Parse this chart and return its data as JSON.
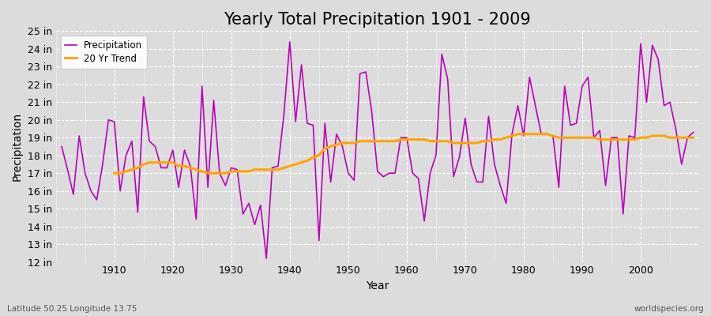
{
  "title": "Yearly Total Precipitation 1901 - 2009",
  "xlabel": "Year",
  "ylabel": "Precipitation",
  "bottom_left_label": "Latitude 50.25 Longitude 13.75",
  "bottom_right_label": "worldspecies.org",
  "ylim": [
    12,
    25
  ],
  "yticks": [
    12,
    13,
    14,
    15,
    16,
    17,
    18,
    19,
    20,
    21,
    22,
    23,
    24,
    25
  ],
  "ytick_labels": [
    "12 in",
    "13 in",
    "14 in",
    "15 in",
    "16 in",
    "17 in",
    "18 in",
    "19 in",
    "20 in",
    "21 in",
    "22 in",
    "23 in",
    "24 in",
    "25 in"
  ],
  "background_color": "#dcdcdc",
  "plot_bg_color": "#dcdcdc",
  "precipitation_color": "#bb00bb",
  "trend_color": "#ffa500",
  "legend_labels": [
    "Precipitation",
    "20 Yr Trend"
  ],
  "years": [
    1901,
    1902,
    1903,
    1904,
    1905,
    1906,
    1907,
    1908,
    1909,
    1910,
    1911,
    1912,
    1913,
    1914,
    1915,
    1916,
    1917,
    1918,
    1919,
    1920,
    1921,
    1922,
    1923,
    1924,
    1925,
    1926,
    1927,
    1928,
    1929,
    1930,
    1931,
    1932,
    1933,
    1934,
    1935,
    1936,
    1937,
    1938,
    1939,
    1940,
    1941,
    1942,
    1943,
    1944,
    1945,
    1946,
    1947,
    1948,
    1949,
    1950,
    1951,
    1952,
    1953,
    1954,
    1955,
    1956,
    1957,
    1958,
    1959,
    1960,
    1961,
    1962,
    1963,
    1964,
    1965,
    1966,
    1967,
    1968,
    1969,
    1970,
    1971,
    1972,
    1973,
    1974,
    1975,
    1976,
    1977,
    1978,
    1979,
    1980,
    1981,
    1982,
    1983,
    1984,
    1985,
    1986,
    1987,
    1988,
    1989,
    1990,
    1991,
    1992,
    1993,
    1994,
    1995,
    1996,
    1997,
    1998,
    1999,
    2000,
    2001,
    2002,
    2003,
    2004,
    2005,
    2006,
    2007,
    2008,
    2009
  ],
  "precipitation": [
    18.5,
    17.2,
    15.8,
    19.1,
    17.0,
    16.0,
    15.5,
    17.5,
    20.0,
    19.9,
    16.0,
    18.0,
    18.8,
    14.8,
    21.3,
    18.8,
    18.5,
    17.3,
    17.3,
    18.3,
    16.2,
    18.3,
    17.4,
    14.4,
    21.9,
    16.2,
    21.1,
    17.0,
    16.3,
    17.3,
    17.2,
    14.7,
    15.3,
    14.1,
    15.2,
    12.2,
    17.3,
    17.4,
    20.3,
    24.4,
    19.9,
    23.1,
    19.8,
    19.7,
    13.2,
    19.8,
    16.5,
    19.2,
    18.5,
    17.0,
    16.6,
    22.6,
    22.7,
    20.5,
    17.1,
    16.8,
    17.0,
    17.0,
    19.0,
    19.0,
    17.0,
    16.7,
    14.3,
    17.0,
    18.0,
    23.7,
    22.3,
    16.8,
    17.9,
    20.1,
    17.5,
    16.5,
    16.5,
    20.2,
    17.5,
    16.3,
    15.3,
    19.2,
    20.8,
    19.1,
    22.4,
    20.8,
    19.2,
    19.2,
    19.1,
    16.2,
    21.9,
    19.7,
    19.8,
    21.9,
    22.4,
    19.0,
    19.4,
    16.3,
    19.0,
    19.0,
    14.7,
    19.1,
    19.0,
    24.3,
    21.0,
    24.2,
    23.4,
    20.8,
    21.0,
    19.5,
    17.5,
    19.0,
    19.3
  ],
  "trend": [
    null,
    null,
    null,
    null,
    null,
    null,
    null,
    null,
    null,
    17.0,
    17.0,
    17.1,
    17.2,
    17.3,
    17.5,
    17.6,
    17.6,
    17.6,
    17.6,
    17.6,
    17.4,
    17.4,
    17.3,
    17.2,
    17.1,
    17.0,
    17.0,
    17.0,
    17.0,
    17.1,
    17.1,
    17.1,
    17.1,
    17.2,
    17.2,
    17.2,
    17.2,
    17.2,
    17.3,
    17.4,
    17.5,
    17.6,
    17.7,
    17.9,
    18.0,
    18.4,
    18.5,
    18.6,
    18.7,
    18.7,
    18.7,
    18.8,
    18.8,
    18.8,
    18.8,
    18.8,
    18.8,
    18.8,
    18.9,
    18.9,
    18.9,
    18.9,
    18.9,
    18.8,
    18.8,
    18.8,
    18.8,
    18.7,
    18.7,
    18.7,
    18.7,
    18.7,
    18.8,
    18.8,
    18.9,
    18.9,
    19.0,
    19.1,
    19.2,
    19.2,
    19.2,
    19.2,
    19.2,
    19.2,
    19.1,
    19.0,
    19.0,
    19.0,
    19.0,
    19.0,
    19.0,
    19.0,
    18.9,
    18.9,
    18.9,
    18.9,
    18.9,
    18.9,
    18.9,
    19.0,
    19.0,
    19.1,
    19.1,
    19.1,
    19.0,
    19.0,
    19.0,
    19.0,
    19.0
  ],
  "title_fontsize": 15,
  "axis_label_fontsize": 10,
  "tick_fontsize": 9,
  "figwidth": 9.0,
  "figheight": 4.0,
  "dpi": 100
}
